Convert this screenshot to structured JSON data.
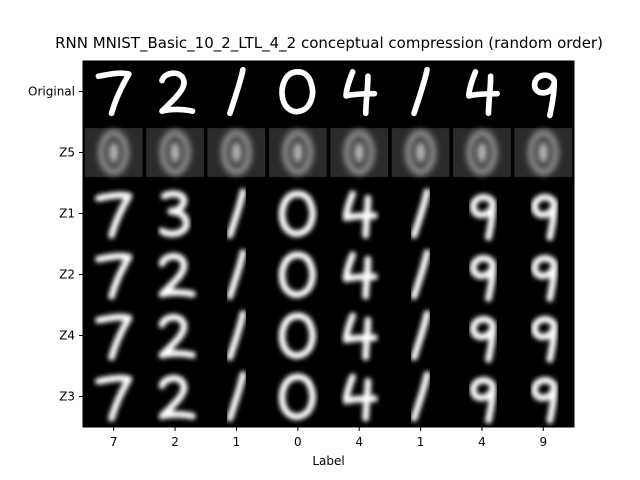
{
  "chart_data": {
    "type": "image_grid",
    "title": "RNN MNIST_Basic_10_2_LTL_4_2 conceptual compression (random order)",
    "xlabel": "Label",
    "ylabel": "",
    "columns": [
      "7",
      "2",
      "1",
      "0",
      "4",
      "1",
      "4",
      "9"
    ],
    "rows": [
      "Original",
      "Z5",
      "Z1",
      "Z2",
      "Z4",
      "Z3"
    ],
    "cells": [
      [
        "7",
        "2",
        "1",
        "0",
        "4",
        "1",
        "4",
        "9"
      ],
      [
        "blur",
        "blur",
        "blur",
        "blur",
        "blur",
        "blur",
        "blur",
        "blur"
      ],
      [
        "7",
        "3",
        "1",
        "0",
        "4",
        "1",
        "9",
        "9"
      ],
      [
        "7",
        "2",
        "1",
        "0",
        "4",
        "1",
        "9",
        "9"
      ],
      [
        "7",
        "2",
        "1",
        "0",
        "4",
        "1",
        "9",
        "9"
      ],
      [
        "7",
        "2",
        "1",
        "0",
        "4",
        "1",
        "9",
        "9"
      ]
    ]
  },
  "colors": {
    "background": "#000000",
    "digit": "#ffffff",
    "axis_text": "#000000"
  }
}
